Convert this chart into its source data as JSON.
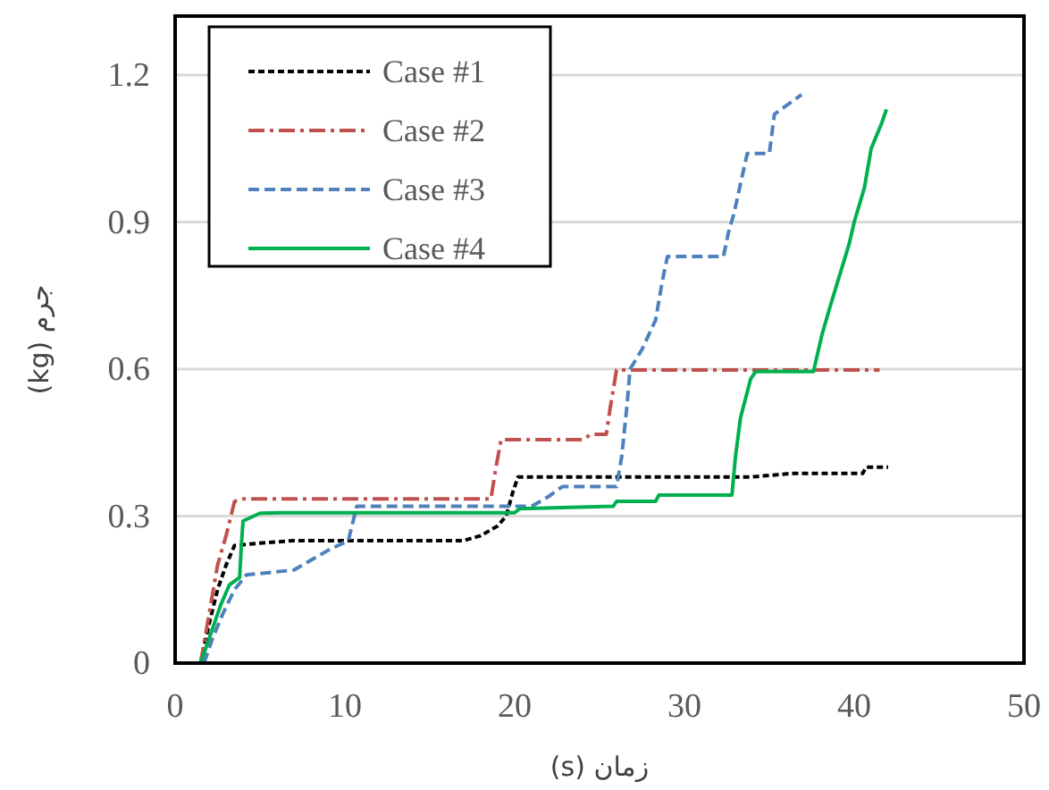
{
  "chart_data": {
    "type": "line",
    "xlabel": "زمان (s)",
    "ylabel": "جرم (kg)",
    "xlim": [
      0,
      50
    ],
    "xticks": [
      0,
      10,
      20,
      30,
      40,
      50
    ],
    "ylim": [
      0,
      1.2
    ],
    "yticks": [
      0,
      0.3,
      0.6,
      0.9,
      1.2
    ],
    "grid": "y",
    "legend": "top left",
    "series": [
      {
        "name": "Case #1",
        "color": "#000000",
        "line_style": "dotted",
        "x": [
          1.5,
          2,
          2.5,
          3,
          3.5,
          5,
          7,
          17,
          18,
          19,
          19.5,
          19.9,
          20.2,
          34,
          36.3,
          40.5,
          40.7,
          42
        ],
        "values": [
          0,
          0.08,
          0.15,
          0.2,
          0.24,
          0.245,
          0.25,
          0.25,
          0.26,
          0.28,
          0.3,
          0.35,
          0.38,
          0.38,
          0.387,
          0.387,
          0.4,
          0.4
        ]
      },
      {
        "name": "Case #2",
        "color": "#c0504d",
        "line_style": "dashdot",
        "x": [
          1.5,
          2,
          2.5,
          3,
          3.5,
          4,
          18.6,
          18.9,
          19.2,
          24,
          24.5,
          25.4,
          25.6,
          26,
          41.5
        ],
        "values": [
          0,
          0.1,
          0.2,
          0.26,
          0.33,
          0.335,
          0.335,
          0.4,
          0.456,
          0.456,
          0.467,
          0.467,
          0.515,
          0.598,
          0.598
        ]
      },
      {
        "name": "Case #3",
        "color": "#4f81bd",
        "line_style": "dashed",
        "x": [
          1.7,
          2.2,
          2.8,
          3.5,
          4.2,
          7,
          8,
          9,
          10.2,
          10.7,
          21,
          22,
          22.8,
          26,
          26.3,
          26.6,
          26.8,
          27.5,
          28.3,
          28.7,
          29,
          32.3,
          32.6,
          32.9,
          33.7,
          35,
          35.3,
          36.9
        ],
        "values": [
          0,
          0.05,
          0.1,
          0.15,
          0.18,
          0.19,
          0.21,
          0.23,
          0.25,
          0.32,
          0.32,
          0.34,
          0.36,
          0.36,
          0.42,
          0.52,
          0.6,
          0.64,
          0.7,
          0.78,
          0.83,
          0.83,
          0.88,
          0.915,
          1.04,
          1.04,
          1.12,
          1.16
        ]
      },
      {
        "name": "Case #4",
        "color": "#00b050",
        "line_style": "solid",
        "x": [
          1.5,
          1.8,
          2.2,
          2.7,
          3.2,
          3.8,
          3.9,
          4,
          5,
          6.3,
          20,
          20.3,
          25.8,
          26,
          28.3,
          28.5,
          32.8,
          33,
          33.3,
          33.9,
          34.2,
          37.6,
          37.7,
          38.1,
          38.6,
          39.7,
          40,
          40.6,
          41,
          41.6,
          41.9
        ],
        "values": [
          0,
          0.03,
          0.07,
          0.12,
          0.16,
          0.175,
          0.24,
          0.29,
          0.306,
          0.307,
          0.307,
          0.315,
          0.32,
          0.33,
          0.33,
          0.343,
          0.343,
          0.42,
          0.5,
          0.58,
          0.595,
          0.595,
          0.61,
          0.67,
          0.73,
          0.855,
          0.9,
          0.97,
          1.05,
          1.1,
          1.13
        ]
      }
    ]
  }
}
